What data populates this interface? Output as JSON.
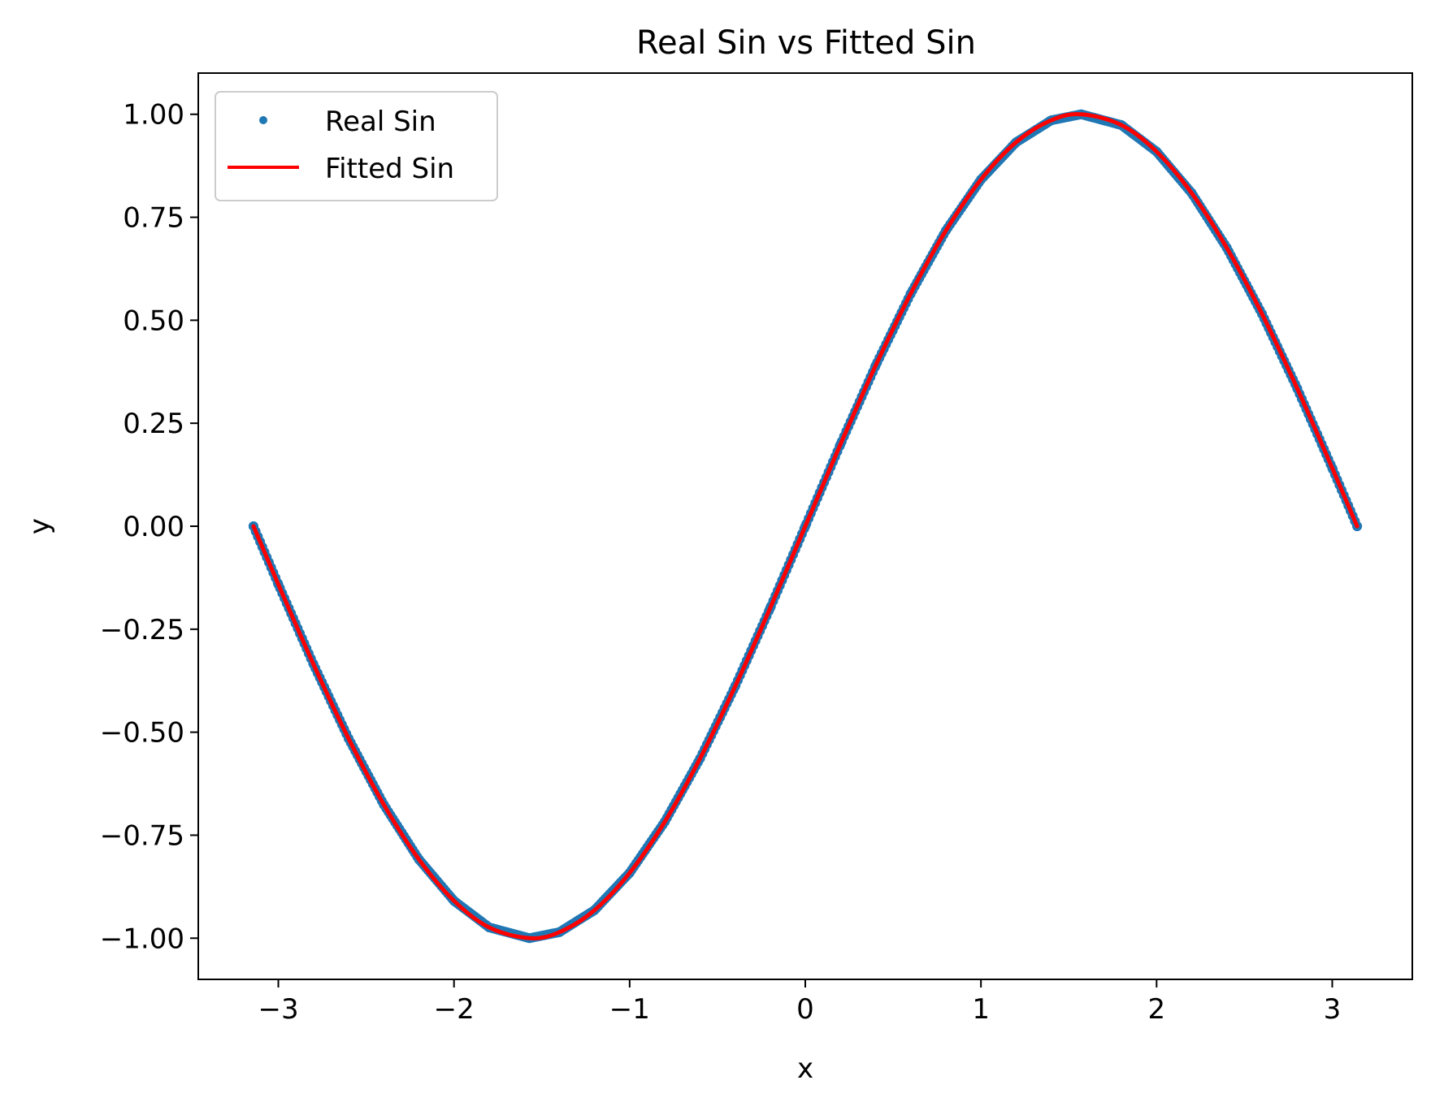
{
  "chart_data": {
    "type": "scatter",
    "title": "Real Sin vs Fitted Sin",
    "xlabel": "x",
    "ylabel": "y",
    "xlim": [
      -3.4558,
      3.4558
    ],
    "ylim": [
      -1.1,
      1.1
    ],
    "grid": false,
    "legend_position": "top-left",
    "xticks": [
      {
        "value": -3,
        "label": "−3"
      },
      {
        "value": -2,
        "label": "−2"
      },
      {
        "value": -1,
        "label": "−1"
      },
      {
        "value": 0,
        "label": "0"
      },
      {
        "value": 1,
        "label": "1"
      },
      {
        "value": 2,
        "label": "2"
      },
      {
        "value": 3,
        "label": "3"
      }
    ],
    "yticks": [
      {
        "value": 1.0,
        "label": "1.00"
      },
      {
        "value": 0.75,
        "label": "0.75"
      },
      {
        "value": 0.5,
        "label": "0.50"
      },
      {
        "value": 0.25,
        "label": "0.25"
      },
      {
        "value": 0.0,
        "label": "0.00"
      },
      {
        "value": -0.25,
        "label": "−0.25"
      },
      {
        "value": -0.5,
        "label": "−0.50"
      },
      {
        "value": -0.75,
        "label": "−0.75"
      },
      {
        "value": -1.0,
        "label": "−1.00"
      }
    ],
    "series": [
      {
        "name": "Real Sin",
        "kind": "scatter",
        "color": "#1f77b4",
        "x": [
          -3.1416,
          -3.0,
          -2.8,
          -2.6,
          -2.4,
          -2.2,
          -2.0,
          -1.8,
          -1.5708,
          -1.4,
          -1.2,
          -1.0,
          -0.8,
          -0.6,
          -0.4,
          -0.2,
          0.0,
          0.2,
          0.4,
          0.6,
          0.8,
          1.0,
          1.2,
          1.4,
          1.5708,
          1.8,
          2.0,
          2.2,
          2.4,
          2.6,
          2.8,
          3.0,
          3.1416
        ],
        "y": [
          0.0,
          -0.1411,
          -0.335,
          -0.5155,
          -0.6755,
          -0.8085,
          -0.9093,
          -0.9738,
          -1.0,
          -0.9854,
          -0.932,
          -0.8415,
          -0.7174,
          -0.5646,
          -0.3894,
          -0.1987,
          0.0,
          0.1987,
          0.3894,
          0.5646,
          0.7174,
          0.8415,
          0.932,
          0.9854,
          1.0,
          0.9738,
          0.9093,
          0.8085,
          0.6755,
          0.5155,
          0.335,
          0.1411,
          0.0
        ]
      },
      {
        "name": "Fitted Sin",
        "kind": "line",
        "color": "#ff0000",
        "x": [
          -3.1416,
          -3.0,
          -2.8,
          -2.6,
          -2.4,
          -2.2,
          -2.0,
          -1.8,
          -1.5708,
          -1.4,
          -1.2,
          -1.0,
          -0.8,
          -0.6,
          -0.4,
          -0.2,
          0.0,
          0.2,
          0.4,
          0.6,
          0.8,
          1.0,
          1.2,
          1.4,
          1.5708,
          1.8,
          2.0,
          2.2,
          2.4,
          2.6,
          2.8,
          3.0,
          3.1416
        ],
        "y": [
          0.0,
          -0.1411,
          -0.335,
          -0.5155,
          -0.6755,
          -0.8085,
          -0.9093,
          -0.9738,
          -1.0,
          -0.9854,
          -0.932,
          -0.8415,
          -0.7174,
          -0.5646,
          -0.3894,
          -0.1987,
          0.0,
          0.1987,
          0.3894,
          0.5646,
          0.7174,
          0.8415,
          0.932,
          0.9854,
          1.0,
          0.9738,
          0.9093,
          0.8085,
          0.6755,
          0.5155,
          0.335,
          0.1411,
          0.0
        ]
      }
    ]
  }
}
